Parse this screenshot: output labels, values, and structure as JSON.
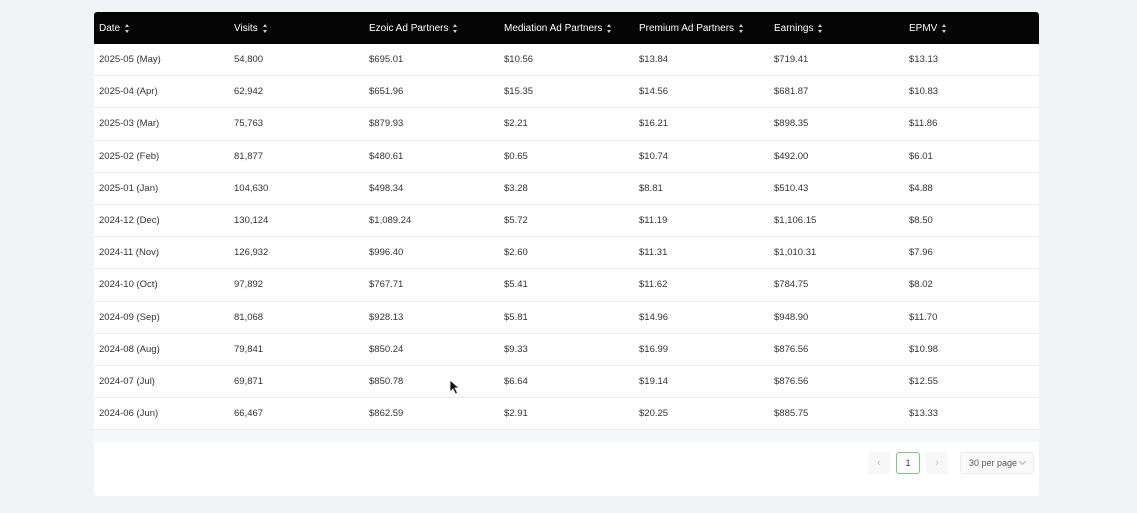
{
  "table": {
    "columns": [
      "Date",
      "Visits",
      "Ezoic Ad Partners",
      "Mediation Ad Partners",
      "Premium Ad Partners",
      "Earnings",
      "EPMV"
    ],
    "rows": [
      [
        "2025-05 (May)",
        "54,800",
        "$695.01",
        "$10.56",
        "$13.84",
        "$719.41",
        "$13.13"
      ],
      [
        "2025-04 (Apr)",
        "62,942",
        "$651.96",
        "$15.35",
        "$14.56",
        "$681.87",
        "$10.83"
      ],
      [
        "2025-03 (Mar)",
        "75,763",
        "$879.93",
        "$2.21",
        "$16.21",
        "$898.35",
        "$11.86"
      ],
      [
        "2025-02 (Feb)",
        "81,877",
        "$480.61",
        "$0.65",
        "$10.74",
        "$492.00",
        "$6.01"
      ],
      [
        "2025-01 (Jan)",
        "104,630",
        "$498.34",
        "$3.28",
        "$8.81",
        "$510.43",
        "$4.88"
      ],
      [
        "2024-12 (Dec)",
        "130,124",
        "$1,089.24",
        "$5.72",
        "$11.19",
        "$1,106.15",
        "$8.50"
      ],
      [
        "2024-11 (Nov)",
        "126,932",
        "$996.40",
        "$2.60",
        "$11.31",
        "$1,010.31",
        "$7.96"
      ],
      [
        "2024-10 (Oct)",
        "97,892",
        "$767.71",
        "$5.41",
        "$11.62",
        "$784.75",
        "$8.02"
      ],
      [
        "2024-09 (Sep)",
        "81,068",
        "$928.13",
        "$5.81",
        "$14.96",
        "$948.90",
        "$11.70"
      ],
      [
        "2024-08 (Aug)",
        "79,841",
        "$850.24",
        "$9.33",
        "$16.99",
        "$876.56",
        "$10.98"
      ],
      [
        "2024-07 (Jul)",
        "69,871",
        "$850.78",
        "$6.64",
        "$19.14",
        "$876.56",
        "$12.55"
      ],
      [
        "2024-06 (Jun)",
        "66,467",
        "$862.59",
        "$2.91",
        "$20.25",
        "$885.75",
        "$13.33"
      ]
    ]
  },
  "pagination": {
    "prev_icon": "chevron-left-icon",
    "next_icon": "chevron-right-icon",
    "current_page": "1",
    "per_page": "30 per page"
  },
  "colors": {
    "header_bg": "#050505",
    "active_page_border": "#7ac97f"
  }
}
